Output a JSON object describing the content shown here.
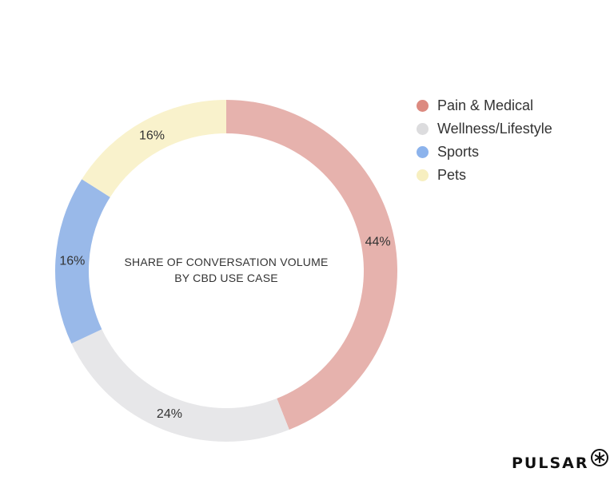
{
  "chart_data": {
    "type": "pie",
    "title": "SHARE OF CONVERSATION VOLUME BY CBD USE CASE",
    "title_lines": [
      "SHARE OF CONVERSATION VOLUME",
      "BY CBD USE CASE"
    ],
    "slices": [
      {
        "label": "Pain & Medical",
        "value": 44,
        "display": "44%",
        "color": "#e6b2ad",
        "legend_color": "#dc8a80"
      },
      {
        "label": "Wellness/Lifestyle",
        "value": 24,
        "display": "24%",
        "color": "#e7e7e9",
        "legend_color": "#dcdcde"
      },
      {
        "label": "Sports",
        "value": 16,
        "display": "16%",
        "color": "#99b9e9",
        "legend_color": "#8cb3ec"
      },
      {
        "label": "Pets",
        "value": 16,
        "display": "16%",
        "color": "#f9f2cc",
        "legend_color": "#f7efc0"
      }
    ],
    "legend_position": "top-right",
    "donut": true
  },
  "branding": {
    "name": "PULSAR",
    "logo": "asterisk-circle-icon"
  }
}
